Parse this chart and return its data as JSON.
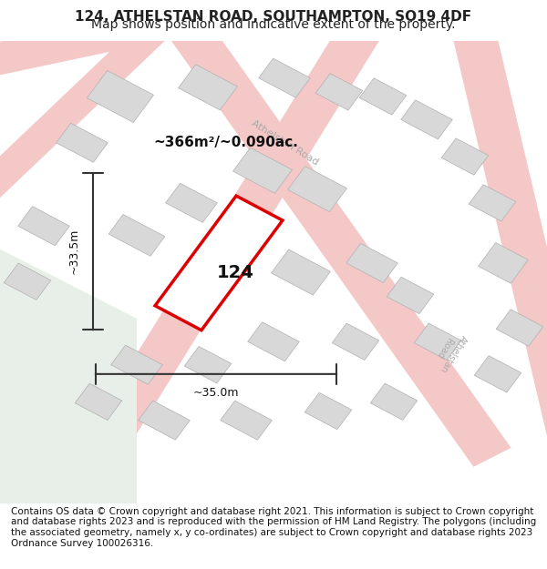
{
  "title": "124, ATHELSTAN ROAD, SOUTHAMPTON, SO19 4DF",
  "subtitle": "Map shows position and indicative extent of the property.",
  "footer": "Contains OS data © Crown copyright and database right 2021. This information is subject to Crown copyright and database rights 2023 and is reproduced with the permission of HM Land Registry. The polygons (including the associated geometry, namely x, y co-ordinates) are subject to Crown copyright and database rights 2023 Ordnance Survey 100026316.",
  "area_label": "~366m²/~0.090ac.",
  "width_label": "~35.0m",
  "height_label": "~33.5m",
  "house_number": "124",
  "map_bg": "#f5f5f0",
  "road_color_light": "#f5c8c8",
  "building_color": "#d8d8d8",
  "building_outline": "#b0b0b0",
  "plot_color": "#ffffff",
  "plot_outline": "#dd0000",
  "road_label_color": "#aaaaaa",
  "green_area": "#e8efe8",
  "title_fontsize": 11,
  "subtitle_fontsize": 10,
  "footer_fontsize": 7.5
}
